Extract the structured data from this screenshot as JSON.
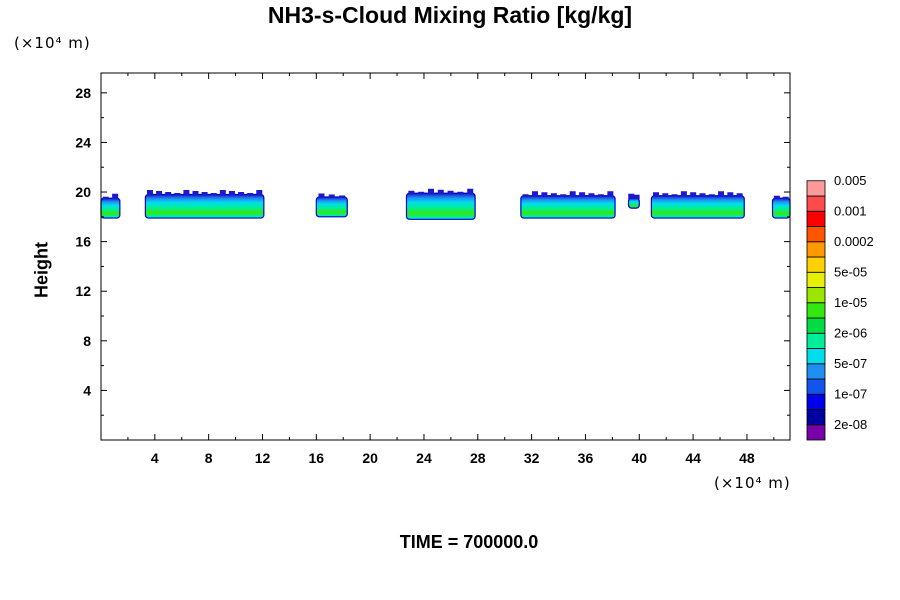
{
  "chart_data": {
    "type": "heatmap",
    "title": "NH3-s-Cloud Mixing Ratio [kg/kg]",
    "ylabel": "Height",
    "xlabel": "",
    "x_unit": "(×10⁴ m)",
    "y_unit": "(×10⁴ m)",
    "x_ticks": [
      4,
      8,
      12,
      16,
      20,
      24,
      28,
      32,
      36,
      40,
      44,
      48
    ],
    "y_ticks": [
      4,
      8,
      12,
      16,
      20,
      24,
      28
    ],
    "xlim": [
      0,
      51.2
    ],
    "ylim": [
      0,
      29.6
    ],
    "colorbar_labels": [
      "2e-08",
      "1e-07",
      "5e-07",
      "2e-06",
      "1e-05",
      "5e-05",
      "0.0002",
      "0.001",
      "0.005"
    ],
    "colorbar_colors": [
      "#7700aa",
      "#0000a0",
      "#0000ee",
      "#1255ee",
      "#1f8ff0",
      "#00ddee",
      "#00ee99",
      "#00dd44",
      "#33e811",
      "#99e600",
      "#e6f000",
      "#ffd000",
      "#ff9900",
      "#ff5500",
      "#ff0000",
      "#ff4b4b",
      "#ff9a9a"
    ],
    "cloud_bands": [
      {
        "x_start": 0.0,
        "x_end": 1.4,
        "y_bottom": 17.9,
        "y_top": 19.5
      },
      {
        "x_start": 3.3,
        "x_end": 12.1,
        "y_bottom": 17.9,
        "y_top": 19.8
      },
      {
        "x_start": 16.0,
        "x_end": 18.3,
        "y_bottom": 18.0,
        "y_top": 19.6
      },
      {
        "x_start": 22.7,
        "x_end": 27.8,
        "y_bottom": 17.8,
        "y_top": 19.9
      },
      {
        "x_start": 31.2,
        "x_end": 38.2,
        "y_bottom": 17.9,
        "y_top": 19.7
      },
      {
        "x_start": 39.2,
        "x_end": 40.0,
        "y_bottom": 18.7,
        "y_top": 19.5
      },
      {
        "x_start": 40.9,
        "x_end": 47.8,
        "y_bottom": 17.9,
        "y_top": 19.7
      },
      {
        "x_start": 49.9,
        "x_end": 51.2,
        "y_bottom": 17.9,
        "y_top": 19.5
      }
    ]
  },
  "footer": {
    "time_label": "TIME = 700000.0"
  }
}
